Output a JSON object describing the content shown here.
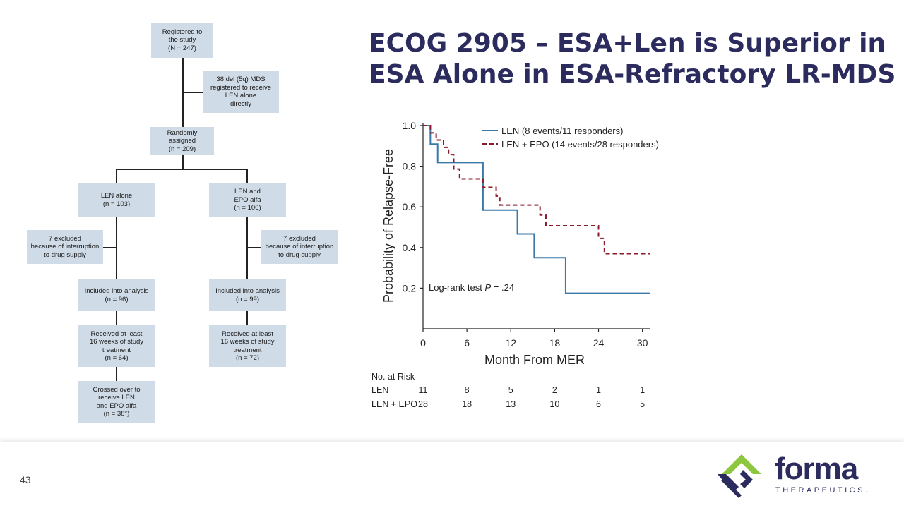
{
  "slide": {
    "title": "ECOG 2905 – ESA+Len is Superior in ESA Alone in ESA-Refractory LR-MDS",
    "page_number": "43"
  },
  "logo": {
    "wordmark": "forma",
    "subtitle": "THERAPEUTICS.",
    "colors": {
      "navy": "#2b2b5e",
      "green": "#8dc63f"
    }
  },
  "flowchart": {
    "registered": "Registered to\nthe study\n(N = 247)",
    "del5q": "38 del (5q) MDS\nregistered to receive\nLEN alone\ndirectly",
    "randomized": "Randomly assigned\n(n = 209)",
    "len_alone": "LEN alone\n(n = 103)",
    "len_epo": "LEN and\nEPO alfa\n(n = 106)",
    "excluded_left": "7 excluded\nbecause of interruption\nto drug supply",
    "excluded_right": "7 excluded\nbecause of interruption\nto drug supply",
    "analysis_left": "Included into analysis\n(n = 96)",
    "analysis_right": "Included into analysis\n(n = 99)",
    "received_left": "Received at least\n16 weeks of study\ntreatment\n(n = 64)",
    "received_right": "Received  at least\n16 weeks of study\ntreatment\n(n = 72)",
    "crossed": "Crossed over to\nreceive LEN\nand EPO alfa\n(n = 38*)"
  },
  "chart_data": {
    "type": "line",
    "step": true,
    "xlabel": "Month From MER",
    "ylabel": "Probability of Relapse-Free",
    "xlim": [
      0,
      31
    ],
    "ylim": [
      0,
      1.0
    ],
    "x_ticks": [
      0,
      6,
      12,
      18,
      24,
      30
    ],
    "y_ticks": [
      0.2,
      0.4,
      0.6,
      0.8,
      1.0
    ],
    "annotation": {
      "prefix": "Log-rank test ",
      "italic": "P",
      "suffix": " = .24"
    },
    "legend_position": "top-right",
    "series": [
      {
        "name": "LEN (8 events/11 responders)",
        "color": "#3a78a8",
        "style": "solid",
        "x": [
          0,
          1,
          2,
          8.2,
          12.9,
          15.2,
          19.5,
          31
        ],
        "y": [
          1.0,
          0.909,
          0.818,
          0.584,
          0.467,
          0.35,
          0.175,
          0.175
        ]
      },
      {
        "name": "LEN + EPO (14 events/28 responders)",
        "color": "#8b1a2b",
        "style": "dashed",
        "x": [
          0,
          1,
          1.8,
          2.8,
          3.5,
          4.2,
          5,
          8.2,
          10,
          10.5,
          16,
          16.8,
          24,
          24.8,
          31
        ],
        "y": [
          1.0,
          0.964,
          0.929,
          0.893,
          0.857,
          0.786,
          0.738,
          0.696,
          0.653,
          0.609,
          0.56,
          0.507,
          0.445,
          0.37,
          0.37
        ]
      }
    ],
    "risk_table": {
      "title": "No. at Risk",
      "times": [
        0,
        6,
        12,
        18,
        24,
        30
      ],
      "rows": [
        {
          "label": "LEN",
          "values": [
            "11",
            "8",
            "5",
            "2",
            "1",
            "1"
          ]
        },
        {
          "label": "LEN + EPO",
          "values": [
            "28",
            "18",
            "13",
            "10",
            "6",
            "5"
          ]
        }
      ]
    }
  }
}
